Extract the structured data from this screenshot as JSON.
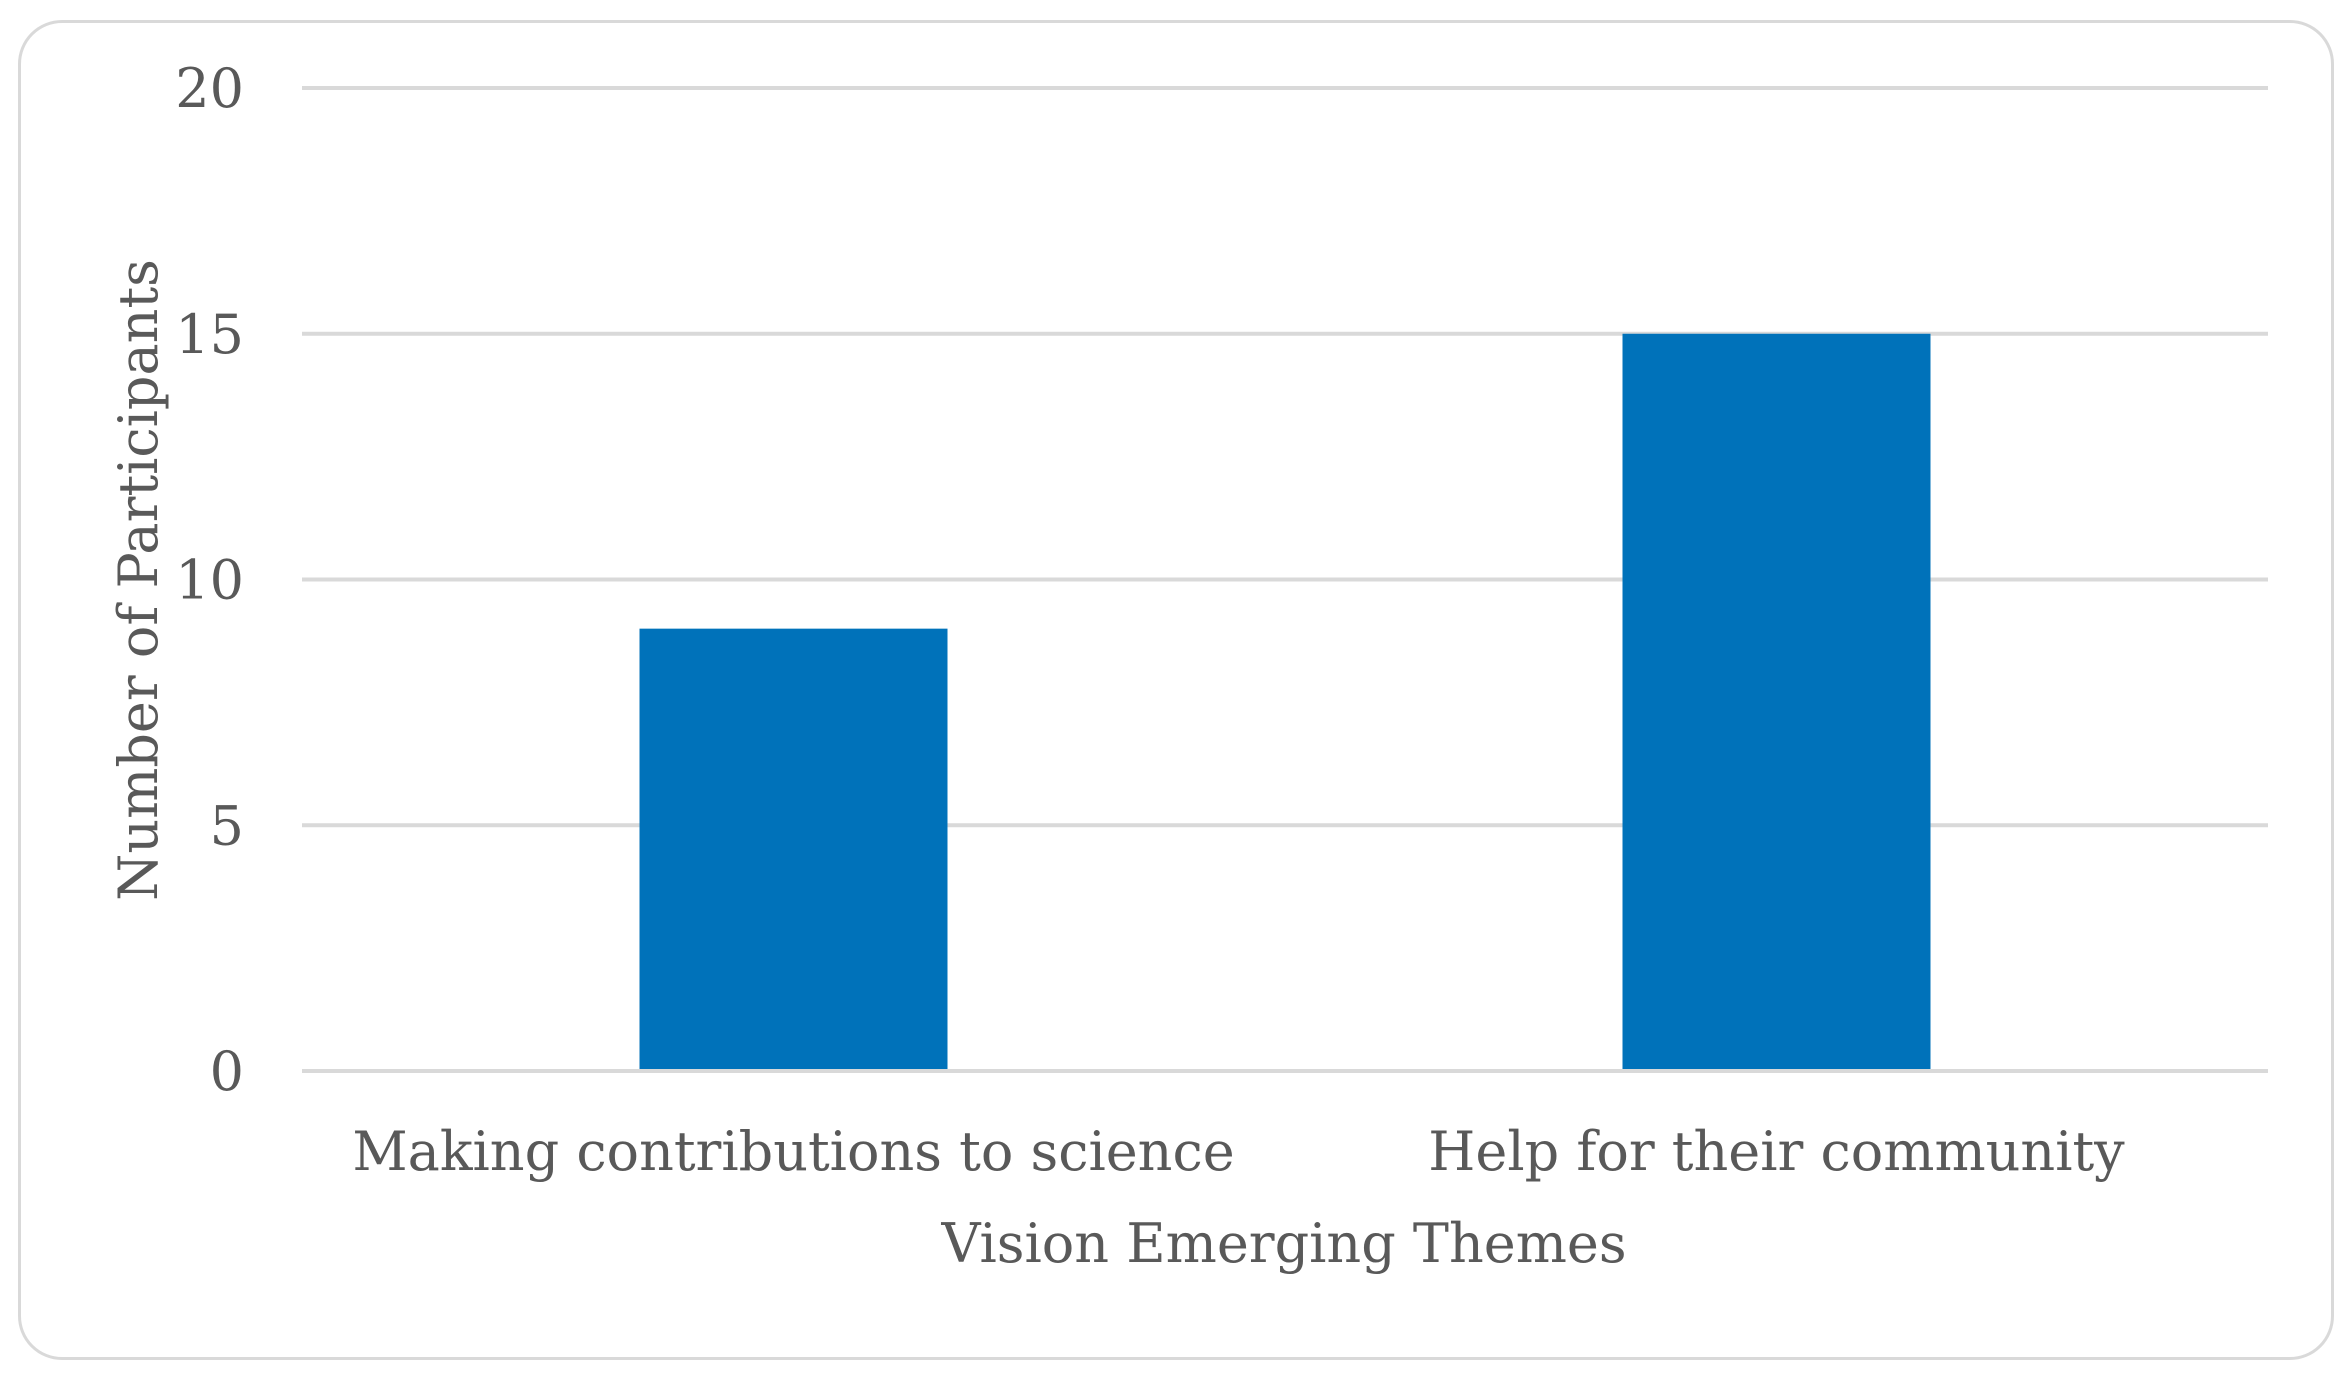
{
  "chart_data": {
    "type": "bar",
    "title": "",
    "xlabel": "Vision Emerging Themes",
    "ylabel": "Number of Participants",
    "categories": [
      "Making contributions to science",
      "Help for their community"
    ],
    "values": [
      9,
      15
    ],
    "ylim": [
      0,
      20
    ],
    "yticks": [
      "0",
      "5",
      "10",
      "15",
      "20"
    ],
    "grid": true,
    "legend": "none",
    "bar_color": "#0072BA",
    "grid_color": "#d9d9d9"
  }
}
